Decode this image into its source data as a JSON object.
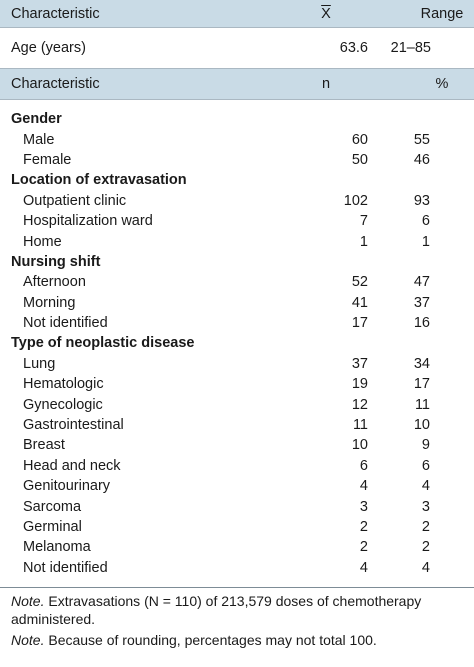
{
  "header1": {
    "characteristic": "Characteristic",
    "mean": "X",
    "range": "Range"
  },
  "age": {
    "label": "Age (years)",
    "mean": "63.6",
    "range": "21–85"
  },
  "header2": {
    "characteristic": "Characteristic",
    "n": "n",
    "pct": "%"
  },
  "sections": [
    {
      "title": "Gender",
      "rows": [
        {
          "label": "Male",
          "n": "60",
          "pct": "55"
        },
        {
          "label": "Female",
          "n": "50",
          "pct": "46"
        }
      ]
    },
    {
      "title": "Location of extravasation",
      "rows": [
        {
          "label": "Outpatient clinic",
          "n": "102",
          "pct": "93"
        },
        {
          "label": "Hospitalization ward",
          "n": "7",
          "pct": "6"
        },
        {
          "label": "Home",
          "n": "1",
          "pct": "1"
        }
      ]
    },
    {
      "title": "Nursing shift",
      "rows": [
        {
          "label": "Afternoon",
          "n": "52",
          "pct": "47"
        },
        {
          "label": "Morning",
          "n": "41",
          "pct": "37"
        },
        {
          "label": "Not identified",
          "n": "17",
          "pct": "16"
        }
      ]
    },
    {
      "title": "Type of neoplastic disease",
      "rows": [
        {
          "label": "Lung",
          "n": "37",
          "pct": "34"
        },
        {
          "label": "Hematologic",
          "n": "19",
          "pct": "17"
        },
        {
          "label": "Gynecologic",
          "n": "12",
          "pct": "11"
        },
        {
          "label": "Gastrointestinal",
          "n": "11",
          "pct": "10"
        },
        {
          "label": "Breast",
          "n": "10",
          "pct": "9"
        },
        {
          "label": "Head and neck",
          "n": "6",
          "pct": "6"
        },
        {
          "label": "Genitourinary",
          "n": "4",
          "pct": "4"
        },
        {
          "label": "Sarcoma",
          "n": "3",
          "pct": "3"
        },
        {
          "label": "Germinal",
          "n": "2",
          "pct": "2"
        },
        {
          "label": "Melanoma",
          "n": "2",
          "pct": "2"
        },
        {
          "label": "Not identified",
          "n": "4",
          "pct": "4"
        }
      ]
    }
  ],
  "notes": [
    {
      "label": "Note.",
      "text": " Extravasations (N = 110) of 213,579 doses of chemotherapy administered."
    },
    {
      "label": "Note.",
      "text": " Because of rounding, percentages may not total 100."
    }
  ]
}
